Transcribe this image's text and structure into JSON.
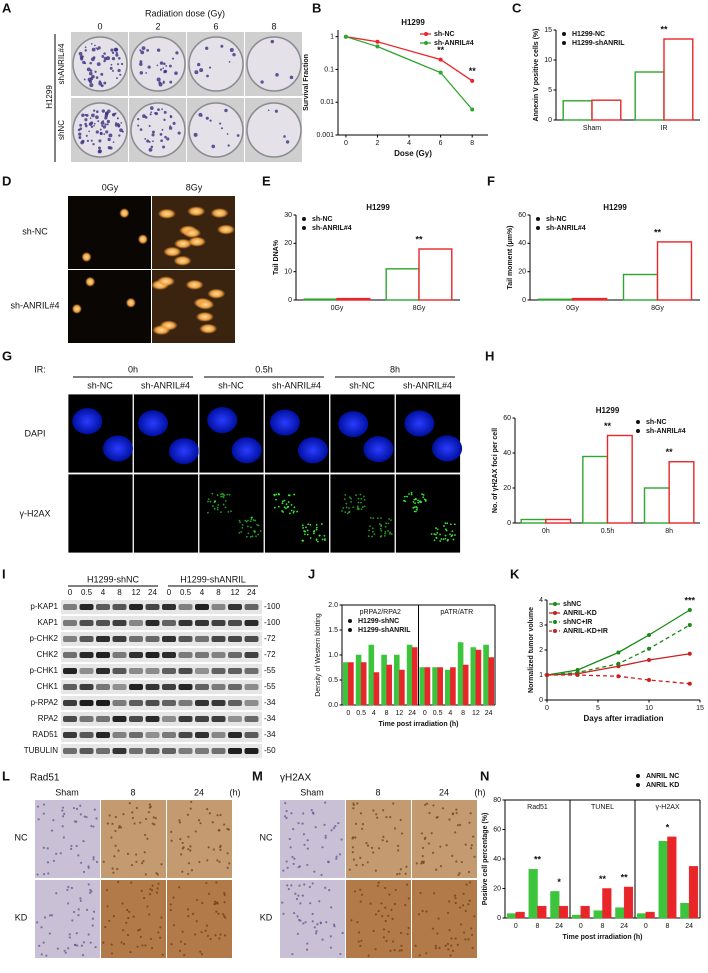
{
  "images": {
    "A": {
      "label": "A",
      "title": "Radiation dose (Gy)",
      "columns": [
        "0",
        "2",
        "6",
        "8"
      ],
      "cell_line": "H1299",
      "rows": [
        "shANRIL#4",
        "shNC"
      ]
    },
    "D": {
      "label": "D",
      "columns": [
        "0Gy",
        "8Gy"
      ],
      "rows": [
        "sh-NC",
        "sh-ANRIL#4"
      ]
    },
    "G": {
      "label": "G",
      "treatment": "IR:",
      "timepoints": [
        "0h",
        "0.5h",
        "8h"
      ],
      "groups": [
        "sh-NC",
        "sh-ANRIL#4",
        "sh-NC",
        "sh-ANRIL#4",
        "sh-NC",
        "sh-ANRIL#4"
      ],
      "rows": [
        "DAPI",
        "γ-H2AX"
      ]
    },
    "I": {
      "label": "I",
      "groups": [
        "H1299-shNC",
        "H1299-shANRIL"
      ],
      "lanes": [
        "0",
        "0.5",
        "4",
        "8",
        "12",
        "24",
        "0",
        "0.5",
        "4",
        "8",
        "12",
        "24"
      ],
      "proteins": [
        "p-KAP1",
        "KAP1",
        "p-CHK2",
        "CHK2",
        "p-CHK1",
        "CHK1",
        "p-RPA2",
        "RPA2",
        "RAD51",
        "TUBULIN"
      ],
      "markers": [
        "-100",
        "-100",
        "-72",
        "-72",
        "-55",
        "-55",
        "-34",
        "-34",
        "-34",
        "-50"
      ]
    },
    "L": {
      "label": "L",
      "title": "Rad51",
      "columns": [
        "Sham",
        "8",
        "24"
      ],
      "unit": "(h)",
      "rows": [
        "NC",
        "KD"
      ]
    },
    "M": {
      "label": "M",
      "title": "γH2AX",
      "columns": [
        "Sham",
        "8",
        "24"
      ],
      "unit": "(h)",
      "rows": [
        "NC",
        "KD"
      ]
    }
  },
  "chart_data": [
    {
      "type": "line",
      "label": "B",
      "title": "H1299",
      "xlabel": "Dose (Gy)",
      "ylabel": "Survival Fraction",
      "log": true,
      "x": [
        0,
        2,
        6,
        8
      ],
      "xlim": [
        -0.5,
        9
      ],
      "xticks": [
        0,
        2,
        4,
        6,
        8
      ],
      "ylim": [
        0.001,
        1.6
      ],
      "yticks": [
        0.001,
        0.01,
        0.1,
        1
      ],
      "series": [
        {
          "name": "sh-NC",
          "color": "#e8262a",
          "values": [
            1,
            0.7,
            0.2,
            0.045
          ]
        },
        {
          "name": "sh-ANRIL#4",
          "color": "#2fa52f",
          "values": [
            1,
            0.5,
            0.08,
            0.006
          ]
        }
      ],
      "legend": "top-right",
      "annotations": [
        "**",
        "**"
      ]
    },
    {
      "type": "bar",
      "label": "C",
      "ylabel": "Annexin V positive cells (%)",
      "categories": [
        "Sham",
        "IR"
      ],
      "ylim": [
        0,
        15
      ],
      "yticks": [
        0,
        5,
        10,
        15
      ],
      "series": [
        {
          "name": "H1299-NC",
          "color": "#2fa52f",
          "values": [
            3.2,
            8
          ]
        },
        {
          "name": "H1299-shANRIL",
          "color": "#e8262a",
          "values": [
            3.3,
            13.5
          ]
        }
      ],
      "fill_style": "outline",
      "legend": "top-left",
      "annotations": [
        "**"
      ]
    },
    {
      "type": "bar",
      "label": "E",
      "title": "H1299",
      "ylabel": "Tail DNA%",
      "categories": [
        "0Gy",
        "8Gy"
      ],
      "ylim": [
        0,
        30
      ],
      "yticks": [
        0,
        10,
        20,
        30
      ],
      "series": [
        {
          "name": "sh-NC",
          "color": "#2fa52f",
          "values": [
            0.3,
            11
          ]
        },
        {
          "name": "sh-ANRIL#4",
          "color": "#e8262a",
          "values": [
            0.5,
            18
          ]
        }
      ],
      "fill_style": "outline",
      "legend": "top-left",
      "annotations": [
        "**"
      ]
    },
    {
      "type": "bar",
      "label": "F",
      "title": "H1299",
      "ylabel": "Tail moment (μm%)",
      "categories": [
        "0Gy",
        "8Gy"
      ],
      "ylim": [
        0,
        60
      ],
      "yticks": [
        0,
        20,
        40,
        60
      ],
      "series": [
        {
          "name": "sh-NC",
          "color": "#2fa52f",
          "values": [
            0.5,
            18
          ]
        },
        {
          "name": "sh-ANRIL#4",
          "color": "#e8262a",
          "values": [
            1,
            41
          ]
        }
      ],
      "fill_style": "outline",
      "legend": "top-left",
      "annotations": [
        "**"
      ]
    },
    {
      "type": "bar",
      "label": "H",
      "title": "H1299",
      "ylabel": "No. of γH2AX foci per cell",
      "categories": [
        "0h",
        "0.5h",
        "8h"
      ],
      "ylim": [
        0,
        60
      ],
      "yticks": [
        0,
        20,
        40,
        60
      ],
      "series": [
        {
          "name": "sh-NC",
          "color": "#2fa52f",
          "values": [
            2,
            38,
            20
          ]
        },
        {
          "name": "sh-ANRIL#4",
          "color": "#e8262a",
          "values": [
            2,
            50,
            35
          ]
        }
      ],
      "fill_style": "outline",
      "legend": "top-right",
      "annotations": [
        "**",
        "**"
      ]
    },
    {
      "type": "bar",
      "label": "J",
      "xlabel": "Time post irradiation (h)",
      "ylabel": "Density of Western blotting",
      "groups": [
        "pRPA2/RPA2",
        "pATR/ATR"
      ],
      "categories": [
        "0",
        "0.5",
        "4",
        "8",
        "12",
        "24",
        "0",
        "0.5",
        "4",
        "8",
        "12",
        "24"
      ],
      "ylim": [
        0,
        2
      ],
      "yticks": [
        {
          "value": 0,
          "label": "0.0"
        },
        0.5,
        {
          "value": 1,
          "label": "1.0"
        },
        1.5,
        {
          "value": 2,
          "label": "2.0"
        }
      ],
      "series": [
        {
          "name": "H1299-shNC",
          "color": "#3cc43c",
          "values": [
            0.85,
            1.0,
            1.2,
            1.0,
            1.0,
            1.2,
            0.75,
            0.75,
            0.7,
            1.25,
            1.15,
            1.2
          ]
        },
        {
          "name": "H1299-shANRIL",
          "color": "#e8262a",
          "values": [
            0.85,
            0.85,
            0.65,
            0.8,
            0.7,
            1.15,
            0.75,
            0.75,
            0.75,
            0.8,
            1.1,
            0.95
          ]
        }
      ],
      "fill_style": "solid",
      "legend": "top-left"
    },
    {
      "type": "line",
      "label": "K",
      "xlabel": "Days after irradiation",
      "ylabel": "Normalized tumor volume",
      "x": [
        0,
        3,
        7,
        10,
        14
      ],
      "xlim": [
        0,
        15
      ],
      "xticks": [
        0,
        5,
        10,
        15
      ],
      "ylim": [
        0,
        4
      ],
      "yticks": [
        0,
        1,
        2,
        3,
        4
      ],
      "series": [
        {
          "name": "shNC",
          "color": "#1a8a1a",
          "values": [
            1,
            1.2,
            1.9,
            2.6,
            3.6
          ]
        },
        {
          "name": "ANRIL-KD",
          "color": "#c8201e",
          "values": [
            1,
            1.05,
            1.35,
            1.6,
            1.85
          ]
        },
        {
          "name": "shNC+IR",
          "color": "#1a8a1a",
          "dashed": true,
          "values": [
            1,
            1.1,
            1.45,
            2.05,
            3.0
          ]
        },
        {
          "name": "ANRIL-KD+IR",
          "color": "#c8201e",
          "dashed": true,
          "values": [
            1,
            1.0,
            0.95,
            0.8,
            0.65
          ]
        }
      ],
      "legend": "top-left",
      "annotations": [
        "***"
      ]
    },
    {
      "type": "bar",
      "label": "N",
      "xlabel": "Time post irradiation (h)",
      "ylabel": "Positive cell percentage (%)",
      "groups": [
        "Rad51",
        "TUNEL",
        "γ-H2AX"
      ],
      "categories": [
        "0",
        "8",
        "24",
        "0",
        "8",
        "24",
        "0",
        "8",
        "24"
      ],
      "ylim": [
        0,
        80
      ],
      "yticks": [
        0,
        20,
        40,
        60,
        80
      ],
      "series": [
        {
          "name": "ANRIL NC",
          "color": "#3cc43c",
          "values": [
            3,
            33,
            18,
            2,
            5,
            7,
            3,
            52,
            10
          ]
        },
        {
          "name": "ANRIL KD",
          "color": "#e8262a",
          "values": [
            4,
            8,
            8,
            8,
            20,
            21,
            4,
            55,
            35
          ]
        }
      ],
      "fill_style": "solid",
      "legend": "above-right",
      "annotations": [
        "**",
        "*",
        "**",
        "**",
        "*"
      ]
    }
  ]
}
